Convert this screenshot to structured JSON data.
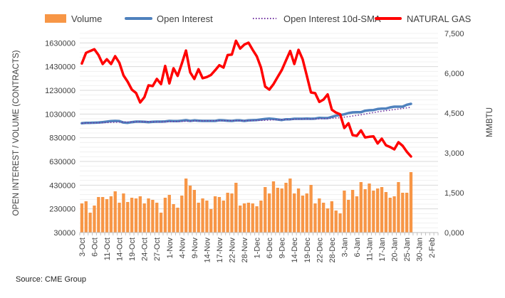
{
  "chart_data": {
    "type": "bar+line",
    "legend": {
      "position": "top",
      "items": [
        "Volume",
        "Open Interest",
        "Open Interest 10d-SMA",
        "NATURAL GAS"
      ]
    },
    "ylabel_left": "OPEN INTEREST / VOLUME (CONTRACTS)",
    "ylabel_right": "MMBTU",
    "ylim_left": [
      30000,
      1710000
    ],
    "ylim_right": [
      0,
      7500
    ],
    "left_ticks": [
      "1630000",
      "1430000",
      "1230000",
      "1030000",
      "830000",
      "630000",
      "430000",
      "230000",
      "30000"
    ],
    "left_tick_values": [
      1630000,
      1430000,
      1230000,
      1030000,
      830000,
      630000,
      430000,
      230000,
      30000
    ],
    "right_ticks": [
      "7,500",
      "6,000",
      "4,500",
      "3,000",
      "1,500",
      "0,000"
    ],
    "right_tick_values": [
      7500,
      6000,
      4500,
      3000,
      1500,
      0
    ],
    "x_tick_labels": [
      "3-Oct",
      "6-Oct",
      "11-Oct",
      "14-Oct",
      "19-Oct",
      "24-Oct",
      "27-Oct",
      "1-Nov",
      "4-Nov",
      "9-Nov",
      "14-Nov",
      "17-Nov",
      "22-Nov",
      "28-Nov",
      "1-Dec",
      "6-Dec",
      "9-Dec",
      "14-Dec",
      "19-Dec",
      "22-Dec",
      "28-Dec",
      "3-Jan",
      "6-Jan",
      "11-Jan",
      "17-Jan",
      "20-Jan",
      "25-Jan",
      "30-Jan",
      "2-Feb"
    ],
    "x_tick_every": 3,
    "total_slots": 86,
    "grid": true,
    "sma_window": 10,
    "colors": {
      "volume": "#F79646",
      "open_interest": "#4F81BD",
      "sma": "#7030A0",
      "natural_gas": "#FF0000"
    },
    "series": [
      {
        "name": "Volume",
        "axis": "left",
        "type": "bar",
        "values": [
          276000,
          294000,
          198000,
          258000,
          330000,
          330000,
          312000,
          336000,
          378000,
          282000,
          360000,
          288000,
          324000,
          318000,
          336000,
          276000,
          318000,
          306000,
          282000,
          198000,
          324000,
          348000,
          270000,
          240000,
          342000,
          486000,
          426000,
          390000,
          282000,
          318000,
          300000,
          228000,
          336000,
          330000,
          300000,
          366000,
          360000,
          450000,
          258000,
          276000,
          282000,
          276000,
          252000,
          300000,
          414000,
          360000,
          462000,
          408000,
          402000,
          450000,
          486000,
          360000,
          402000,
          342000,
          360000,
          432000,
          276000,
          318000,
          282000,
          234000,
          294000,
          216000,
          192000,
          384000,
          306000,
          390000,
          336000,
          456000,
          396000,
          444000,
          384000,
          402000,
          414000,
          372000,
          324000,
          336000,
          456000,
          366000,
          366000,
          540000
        ]
      },
      {
        "name": "Open Interest",
        "axis": "left",
        "type": "line",
        "values": [
          952000,
          955000,
          956000,
          957000,
          958000,
          962000,
          966000,
          970000,
          972000,
          970000,
          958000,
          956000,
          962000,
          966000,
          966000,
          964000,
          962000,
          964000,
          966000,
          966000,
          968000,
          972000,
          970000,
          970000,
          974000,
          978000,
          972000,
          976000,
          974000,
          972000,
          972000,
          972000,
          972000,
          978000,
          976000,
          974000,
          972000,
          976000,
          976000,
          972000,
          976000,
          978000,
          980000,
          984000,
          988000,
          992000,
          988000,
          984000,
          980000,
          986000,
          986000,
          990000,
          990000,
          990000,
          992000,
          990000,
          992000,
          998000,
          996000,
          996000,
          1006000,
          1016000,
          1022000,
          1028000,
          1038000,
          1044000,
          1046000,
          1046000,
          1058000,
          1062000,
          1064000,
          1072000,
          1076000,
          1076000,
          1086000,
          1092000,
          1092000,
          1092000,
          1108000,
          1116000
        ]
      },
      {
        "name": "NATURAL GAS",
        "axis": "right",
        "type": "line",
        "values": [
          6366,
          6768,
          6839,
          6902,
          6687,
          6348,
          6527,
          6348,
          6643,
          6393,
          5920,
          5678,
          5384,
          5259,
          4902,
          5098,
          5545,
          5518,
          5786,
          5589,
          6277,
          5616,
          6187,
          5902,
          6366,
          6857,
          6036,
          5786,
          6152,
          5812,
          5857,
          5937,
          6116,
          6303,
          6214,
          6687,
          6705,
          7223,
          6929,
          7080,
          7152,
          6884,
          6634,
          6214,
          5500,
          5384,
          5589,
          5857,
          6125,
          6482,
          6839,
          6348,
          6884,
          6527,
          5902,
          5277,
          5250,
          4920,
          5009,
          5205,
          4625,
          4518,
          4455,
          3937,
          4116,
          3669,
          3643,
          3848,
          3580,
          3607,
          3625,
          3357,
          3536,
          3286,
          3223,
          3134,
          3402,
          3268,
          3045,
          2866
        ]
      }
    ]
  },
  "source": "Source: CME Group"
}
